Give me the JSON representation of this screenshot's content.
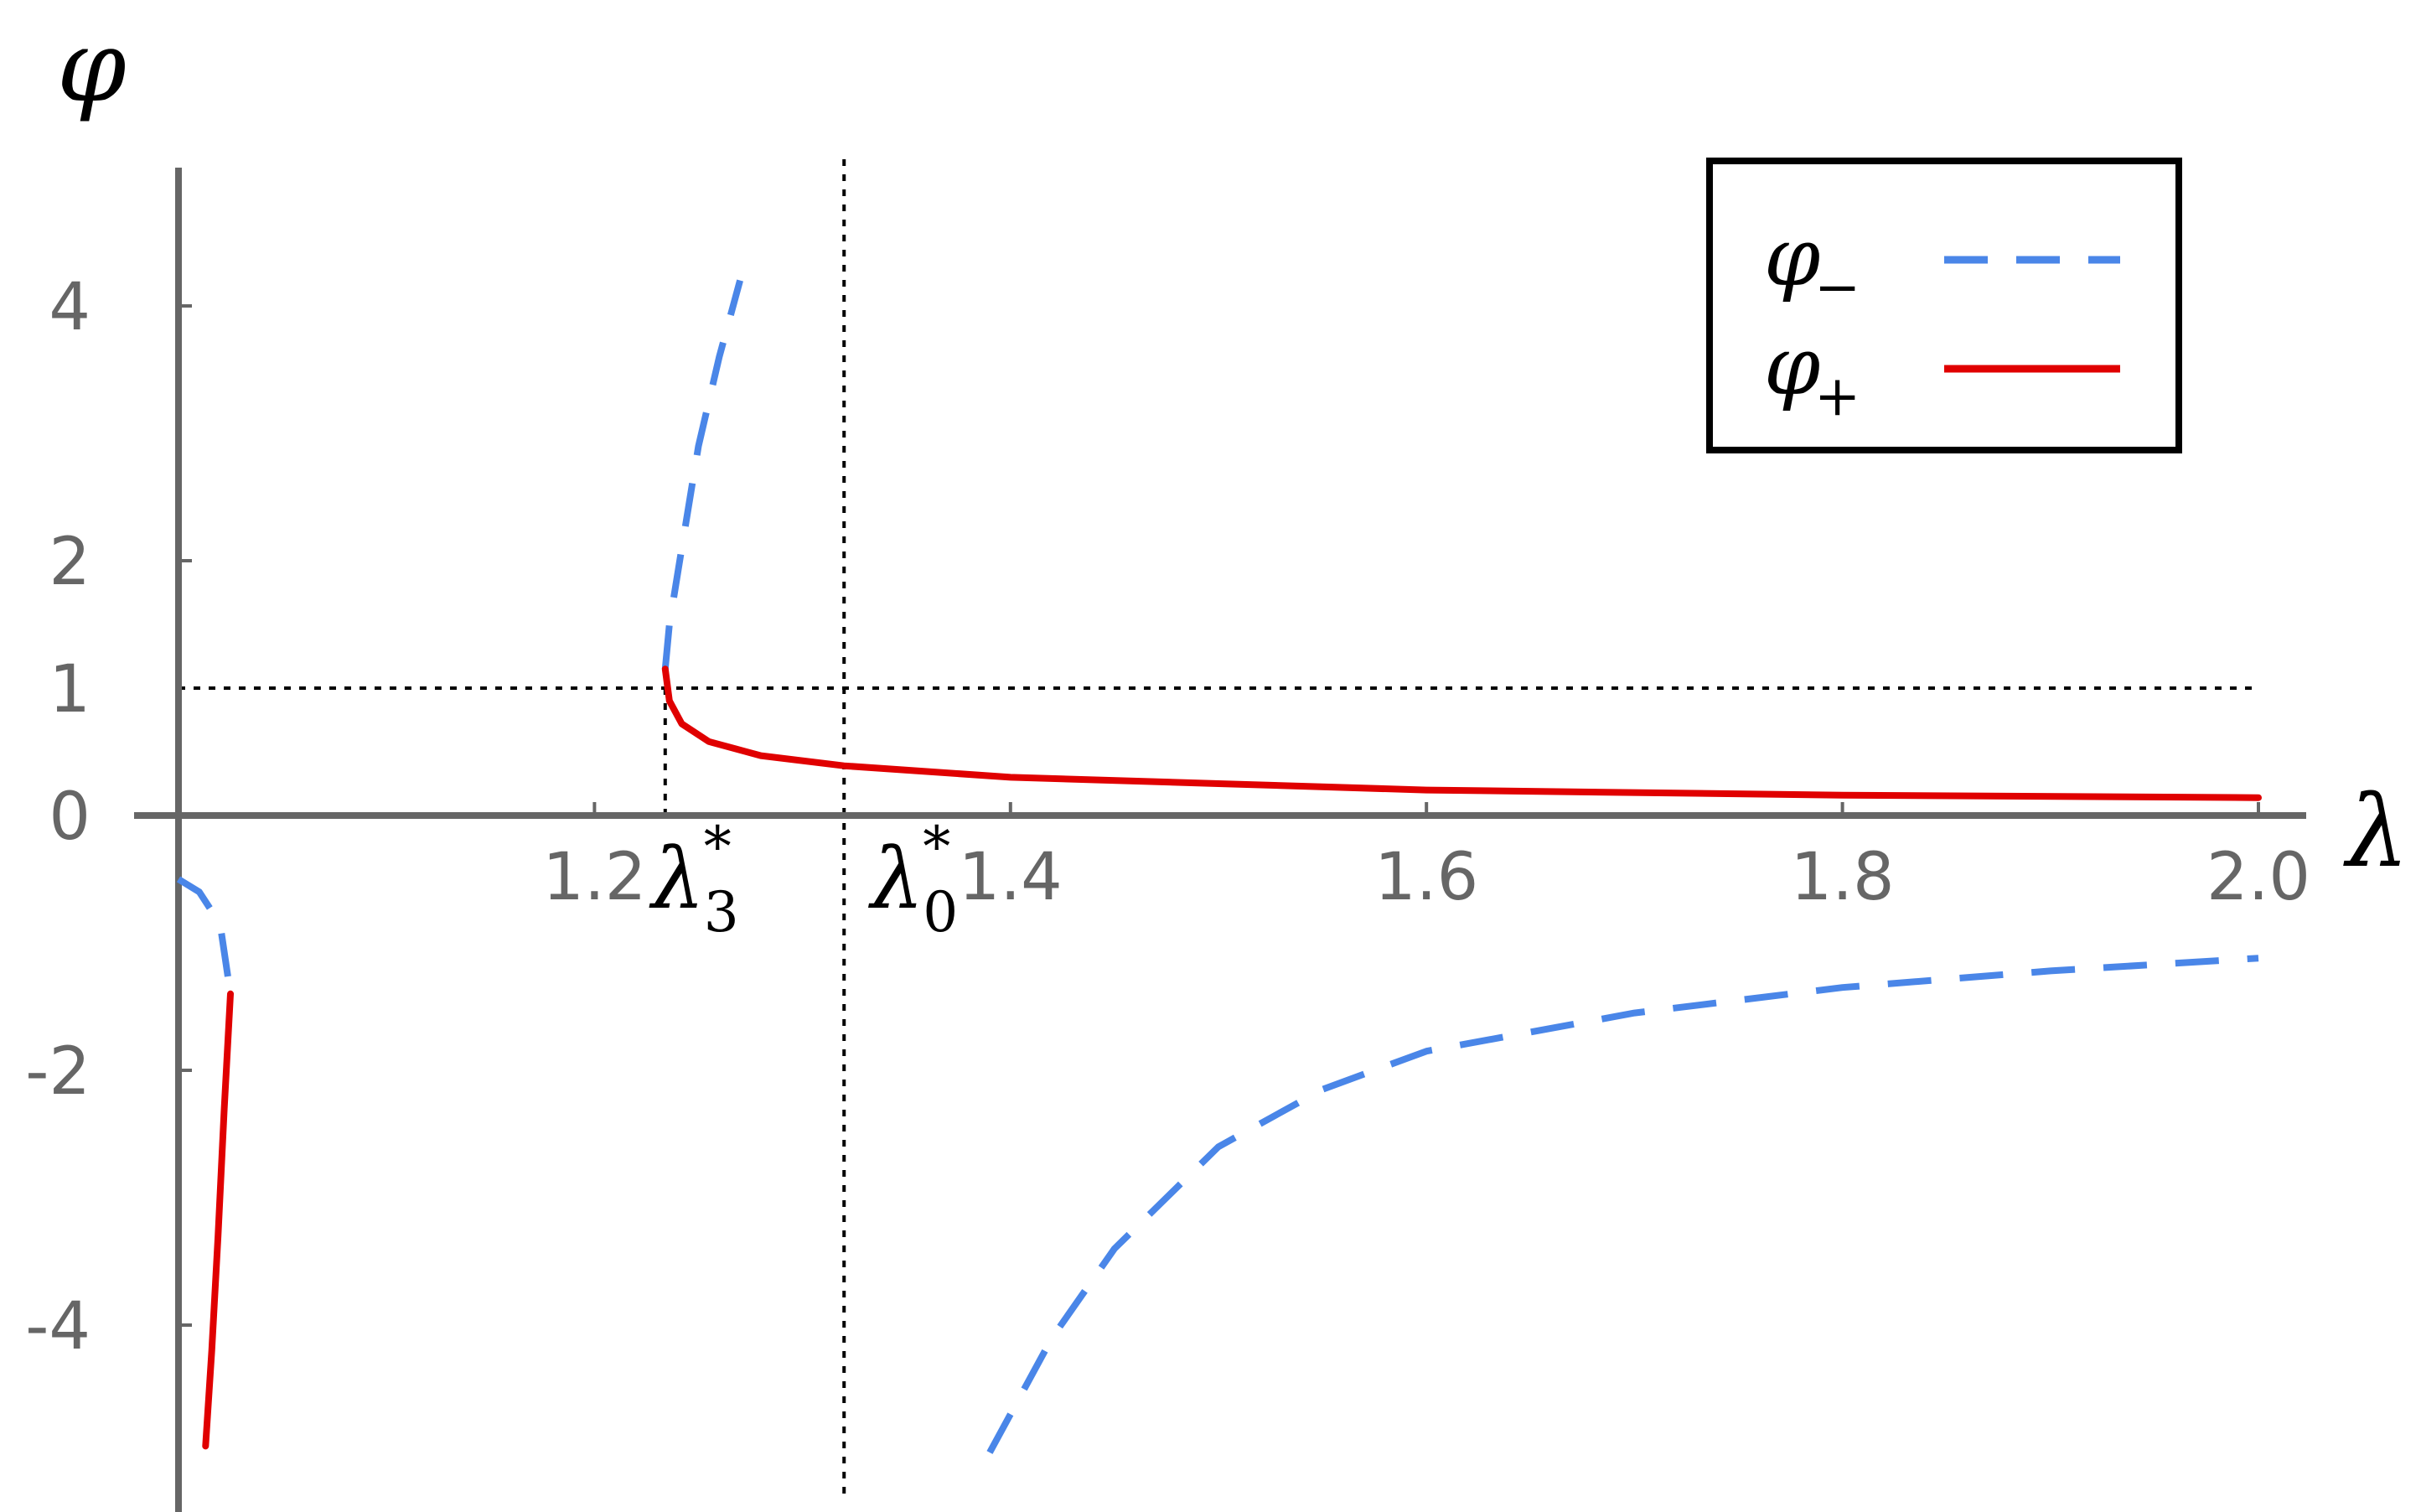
{
  "chart_data": {
    "type": "line",
    "title": "",
    "xlabel": "λ",
    "ylabel": "φ",
    "xlim": [
      0.95,
      2.05
    ],
    "ylim": [
      -5.4,
      5.1
    ],
    "x_ticks": [
      1.2,
      1.4,
      1.6,
      1.8,
      2.0
    ],
    "x_tick_labels": [
      "1.2",
      "1.4",
      "1.6",
      "1.8",
      "2.0"
    ],
    "y_ticks": [
      -4,
      -2,
      0,
      1,
      2,
      4
    ],
    "y_tick_labels": [
      "-4",
      "-2",
      "0",
      "1",
      "2",
      "4"
    ],
    "grid": false,
    "legend_position": "top-right",
    "legend": [
      {
        "label": "φ₋",
        "base": "φ",
        "subscript": "−",
        "style": "dashed",
        "color": "#4a86e8"
      },
      {
        "label": "φ₊",
        "base": "φ",
        "subscript": "+",
        "style": "solid",
        "color": "#e00000"
      }
    ],
    "reference_lines": [
      {
        "orientation": "horizontal",
        "y": 1,
        "style": "dotted"
      },
      {
        "orientation": "vertical",
        "x": 1.32,
        "style": "dotted",
        "label": "λ0*"
      },
      {
        "orientation": "vertical",
        "x": 1.234,
        "style": "dotted",
        "y_range": [
          0,
          1
        ],
        "label": "λ3*"
      }
    ],
    "annotations": [
      {
        "text": "λ3*",
        "base": "λ",
        "superscript": "*",
        "subscript": "3",
        "x": 1.234
      },
      {
        "text": "λ0*",
        "base": "λ",
        "superscript": "*",
        "subscript": "0",
        "x": 1.32
      }
    ],
    "series": [
      {
        "name": "φ₋",
        "style": "dashed",
        "color": "#4a86e8",
        "segments": [
          {
            "x": [
              1.0,
              1.01,
              1.02,
              1.025
            ],
            "y": [
              -0.5,
              -0.6,
              -0.85,
              -1.4
            ]
          },
          {
            "x": [
              1.234,
              1.236,
              1.242,
              1.25,
              1.26,
              1.27
            ],
            "y": [
              1.15,
              1.5,
              2.1,
              2.9,
              3.6,
              4.2
            ]
          },
          {
            "x": [
              1.39,
              1.4,
              1.42,
              1.45,
              1.5,
              1.55,
              1.6,
              1.7,
              1.8,
              1.9,
              2.0
            ],
            "y": [
              -5.0,
              -4.7,
              -4.1,
              -3.4,
              -2.6,
              -2.15,
              -1.85,
              -1.55,
              -1.35,
              -1.22,
              -1.12
            ]
          }
        ]
      },
      {
        "name": "φ₊",
        "style": "solid",
        "color": "#e00000",
        "segments": [
          {
            "x": [
              1.025,
              1.022,
              1.019,
              1.016,
              1.013
            ],
            "y": [
              -1.4,
              -2.3,
              -3.3,
              -4.2,
              -4.95
            ]
          },
          {
            "x": [
              1.234,
              1.236,
              1.242,
              1.255,
              1.28,
              1.32,
              1.4,
              1.5,
              1.6,
              1.8,
              2.0
            ],
            "y": [
              1.15,
              0.9,
              0.72,
              0.58,
              0.47,
              0.39,
              0.3,
              0.25,
              0.2,
              0.16,
              0.14
            ]
          }
        ]
      }
    ]
  }
}
